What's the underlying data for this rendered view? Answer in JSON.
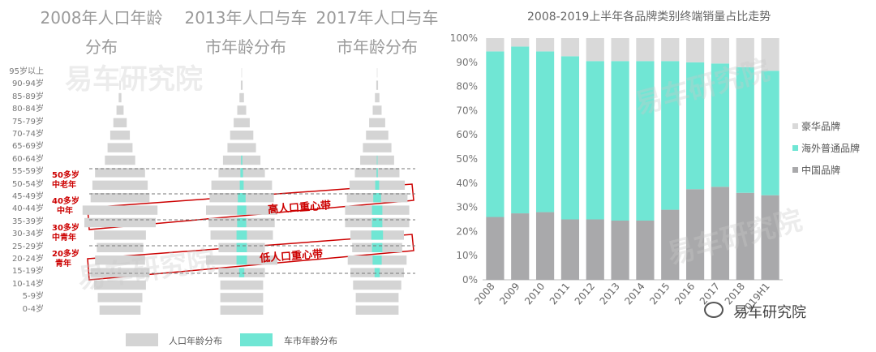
{
  "colors": {
    "population": "#d4d4d4",
    "car_market": "#70e6d4",
    "highlight": "#cc0000",
    "china": "#a9a9ab",
    "overseas": "#70e6d4",
    "luxury": "#d9d9d9"
  },
  "pyramid": {
    "titles": [
      {
        "line1": "2008年人口年龄",
        "line2": "分布"
      },
      {
        "line1": "2013年人口与车",
        "line2": "市年龄分布"
      },
      {
        "line1": "2017年人口与车",
        "line2": "市年龄分布"
      }
    ],
    "age_groups": [
      "95岁以上",
      "90-94岁",
      "85-89岁",
      "80-84岁",
      "75-79岁",
      "70-74岁",
      "65-69岁",
      "60-64岁",
      "55-59岁",
      "50-54岁",
      "45-49岁",
      "40-44岁",
      "35-39岁",
      "30-34岁",
      "25-29岁",
      "20-24岁",
      "15-19岁",
      "10-14岁",
      "5-9岁",
      "0-4岁"
    ],
    "population": [
      [
        0.2,
        1,
        3,
        8,
        15,
        22,
        28,
        34,
        56,
        62,
        66,
        84,
        80,
        58,
        52,
        56,
        66,
        58,
        50,
        46
      ],
      [
        0.5,
        2,
        5,
        10,
        18,
        26,
        32,
        42,
        52,
        68,
        72,
        80,
        74,
        70,
        52,
        80,
        52,
        48,
        48,
        48
      ],
      [
        0.5,
        2,
        5,
        10,
        18,
        25,
        32,
        38,
        50,
        62,
        68,
        72,
        72,
        60,
        56,
        66,
        60,
        54,
        48,
        48
      ]
    ],
    "car_market": [
      null,
      [
        0,
        0,
        0,
        0,
        0,
        0,
        0,
        1,
        2,
        3,
        6,
        7,
        7,
        8,
        8,
        8,
        4,
        0,
        0,
        0
      ],
      [
        0,
        0,
        0,
        0,
        0,
        0,
        0,
        0.5,
        1,
        3,
        6,
        8,
        8,
        9,
        8,
        7,
        4,
        0,
        0,
        0
      ]
    ],
    "age_notes": [
      {
        "line1": "50多岁",
        "line2": "中老年"
      },
      {
        "line1": "40多岁",
        "line2": "中年"
      },
      {
        "line1": "30多岁",
        "line2": "中青年"
      },
      {
        "line1": "20多岁",
        "line2": "青年"
      }
    ],
    "bands": [
      {
        "label": "高人口重心带"
      },
      {
        "label": "低人口重心带"
      }
    ],
    "legend": {
      "population": "人口年龄分布",
      "car_market": "车市年龄分布"
    },
    "watermark": "易车研究院"
  },
  "chart_data": {
    "type": "bar",
    "stacked": true,
    "title": "2008-2019上半年各品牌类别终端销量占比走势",
    "categories": [
      "2008",
      "2009",
      "2010",
      "2011",
      "2012",
      "2013",
      "2014",
      "2015",
      "2016",
      "2017",
      "2018",
      "2019H1"
    ],
    "series": [
      {
        "name": "中国品牌",
        "values": [
          26,
          27.5,
          28,
          25,
          25,
          24.5,
          24.5,
          29,
          37.5,
          38.5,
          36,
          35
        ]
      },
      {
        "name": "海外普通品牌",
        "values": [
          68.5,
          69,
          66.5,
          67.5,
          65.5,
          66,
          66,
          61.5,
          52.5,
          51,
          52,
          51.5
        ]
      },
      {
        "name": "豪华品牌",
        "values": [
          5.5,
          3.5,
          5.5,
          7.5,
          9.5,
          9.5,
          9.5,
          9.5,
          10,
          10.5,
          12,
          13.5
        ]
      }
    ],
    "legend_order": [
      "豪华品牌",
      "海外普通品牌",
      "中国品牌"
    ],
    "yticks": [
      "0%",
      "10%",
      "20%",
      "30%",
      "40%",
      "50%",
      "60%",
      "70%",
      "80%",
      "90%",
      "100%"
    ],
    "ylim": [
      0,
      100
    ],
    "legend": "right",
    "grid": false
  }
}
